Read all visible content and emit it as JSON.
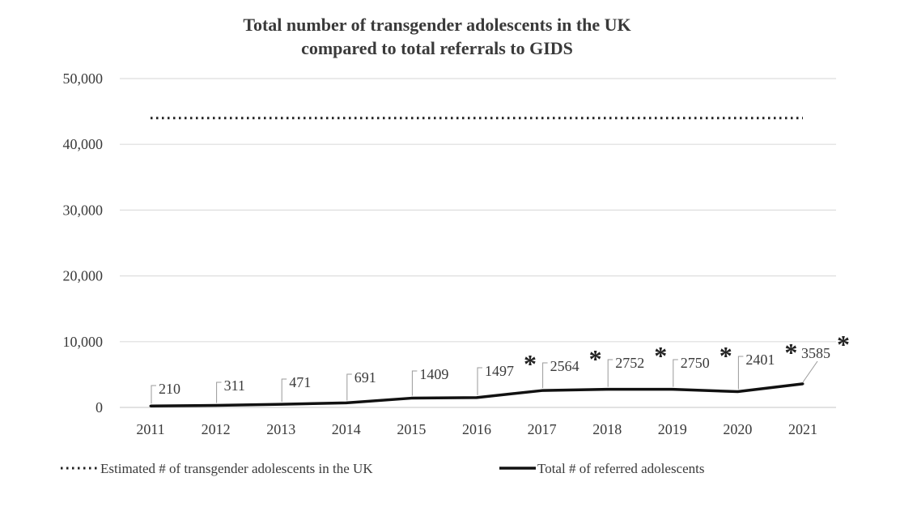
{
  "chart_data": {
    "type": "line",
    "title": "Total number of transgender adolescents in the UK",
    "subtitle": "compared to total referrals to GIDS",
    "x": [
      2011,
      2012,
      2013,
      2014,
      2015,
      2016,
      2017,
      2018,
      2019,
      2020,
      2021
    ],
    "x_tick_labels": [
      "2011",
      "2012",
      "2013",
      "2014",
      "2015",
      "2016",
      "2017",
      "2018",
      "2019",
      "2020",
      "2021"
    ],
    "ylim": [
      0,
      50000
    ],
    "y_ticks": [
      0,
      10000,
      20000,
      30000,
      40000,
      50000
    ],
    "y_tick_labels": [
      "0",
      "10,000",
      "20,000",
      "30,000",
      "40,000",
      "50,000"
    ],
    "grid": true,
    "legend_position": "bottom",
    "series": [
      {
        "name": "Estimated # of transgender adolescents in the UK",
        "style": "dotted",
        "color": "#222222",
        "values": [
          44000,
          44000,
          44000,
          44000,
          44000,
          44000,
          44000,
          44000,
          44000,
          44000,
          44000
        ]
      },
      {
        "name": "Total # of referred adolescents",
        "style": "solid",
        "color": "#111111",
        "values": [
          210,
          311,
          471,
          691,
          1409,
          1497,
          2564,
          2752,
          2750,
          2401,
          3585
        ],
        "data_labels": [
          "210",
          "311",
          "471",
          "691",
          "1409",
          "1497",
          "2564",
          "2752",
          "2750",
          "2401",
          "3585"
        ],
        "asterisk_indices": [
          5,
          6,
          7,
          8,
          9,
          10
        ],
        "asterisk_symbol": "*"
      }
    ]
  }
}
